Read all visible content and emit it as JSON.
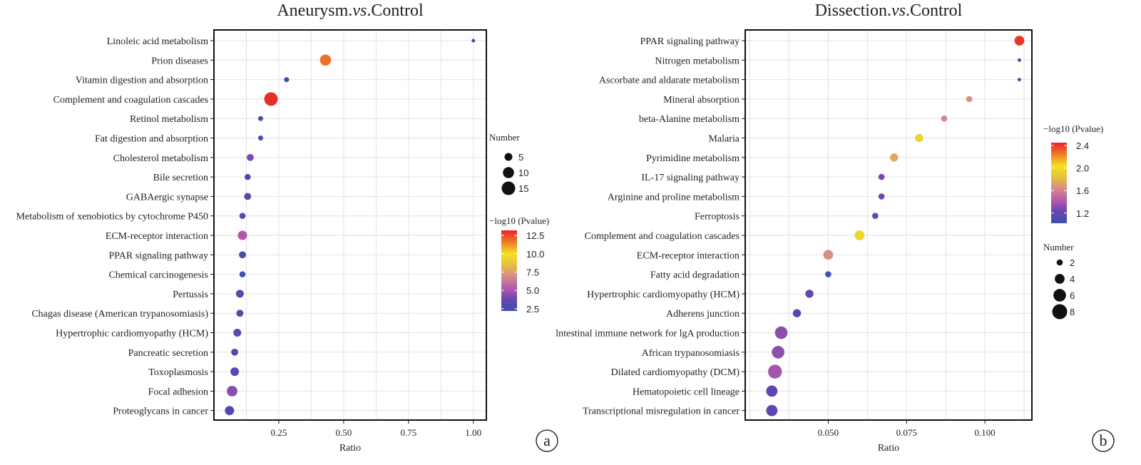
{
  "chart_data": [
    {
      "type": "scatter",
      "title": "Aneurysm.vs.Control",
      "title_parts": {
        "left": "Aneurysm.",
        "italic": "vs",
        "right": ".Control"
      },
      "xlabel": "Ratio",
      "ylabel": "",
      "xlim": [
        0,
        1.05
      ],
      "xticks": [
        0.25,
        0.5,
        0.75,
        1.0
      ],
      "xtick_labels": [
        "0.25",
        "0.50",
        "0.75",
        "1.00"
      ],
      "grid": true,
      "panel_tag": "a",
      "categories": [
        "Linoleic acid metabolism",
        "Prion diseases",
        "Vitamin digestion and absorption",
        "Complement and coagulation cascades",
        "Retinol metabolism",
        "Fat digestion and absorption",
        "Cholesterol metabolism",
        "Bile secretion",
        "GABAergic synapse",
        "Metabolism of xenobiotics by cytochrome P450",
        "ECM-receptor interaction",
        "PPAR signaling pathway",
        "Chemical carcinogenesis",
        "Pertussis",
        "Chagas disease (American trypanosomiasis)",
        "Hypertrophic cardiomyopathy (HCM)",
        "Pancreatic secretion",
        "Toxoplasmosis",
        "Focal adhesion",
        "Proteoglycans in cancer"
      ],
      "ratio": [
        1.0,
        0.43,
        0.28,
        0.22,
        0.18,
        0.18,
        0.14,
        0.13,
        0.13,
        0.11,
        0.11,
        0.11,
        0.11,
        0.1,
        0.1,
        0.09,
        0.08,
        0.08,
        0.07,
        0.06
      ],
      "number": [
        1,
        10,
        2,
        15,
        2,
        2,
        4,
        3,
        4,
        3,
        7,
        4,
        3,
        5,
        4,
        5,
        4,
        6,
        9,
        7
      ],
      "neglog10_p": [
        2.3,
        11.8,
        2.4,
        13.0,
        2.4,
        2.4,
        4.2,
        2.8,
        3.1,
        2.7,
        5.2,
        2.6,
        2.5,
        3.2,
        3.0,
        3.1,
        2.7,
        3.1,
        4.4,
        2.9
      ],
      "size_legend": {
        "title": "Number",
        "values": [
          5,
          10,
          15
        ],
        "labels": [
          "5",
          "10",
          "15"
        ]
      },
      "color_legend": {
        "title": "−log10 (Pvalue)",
        "range": [
          2.2,
          13.2
        ],
        "ticks": [
          2.5,
          5.0,
          7.5,
          10.0,
          12.5
        ],
        "tick_labels": [
          "2.5",
          "5.0",
          "7.5",
          "10.0",
          "12.5"
        ]
      }
    },
    {
      "type": "scatter",
      "title": "Dissection.vs.Control",
      "title_parts": {
        "left": "Dissection.",
        "italic": "vs",
        "right": ".Control"
      },
      "xlabel": "Ratio",
      "ylabel": "",
      "xlim": [
        0.0235,
        0.115
      ],
      "xticks": [
        0.05,
        0.075,
        0.1
      ],
      "xtick_labels": [
        "0.050",
        "0.075",
        "0.100"
      ],
      "grid": true,
      "panel_tag": "b",
      "categories": [
        "PPAR signaling pathway",
        "Nitrogen metabolism",
        "Ascorbate and aldarate metabolism",
        "Mineral absorption",
        "beta-Alanine metabolism",
        "Malaria",
        "Pyrimidine metabolism",
        "IL-17 signaling pathway",
        "Arginine and proline metabolism",
        "Ferroptosis",
        "Complement and coagulation cascades",
        "ECM-receptor interaction",
        "Fatty acid degradation",
        "Hypertrophic cardiomyopathy (HCM)",
        "Adherens junction",
        "lntestinal immune network for lgA production",
        "African trypanosomiasis",
        "Dilated cardiomyopathy (DCM)",
        "Hematopoietic cell lineage",
        "Transcriptional misregulation in cancer"
      ],
      "ratio": [
        0.111,
        0.111,
        0.111,
        0.095,
        0.087,
        0.079,
        0.071,
        0.067,
        0.067,
        0.065,
        0.06,
        0.05,
        0.05,
        0.044,
        0.04,
        0.035,
        0.034,
        0.033,
        0.032,
        0.032
      ],
      "number": [
        4,
        1,
        1,
        2,
        2,
        3,
        3,
        2,
        2,
        2,
        4,
        4,
        2,
        3,
        3,
        6,
        6,
        7,
        5,
        5
      ],
      "neglog10_p": [
        2.4,
        1.1,
        1.1,
        1.65,
        1.62,
        1.95,
        1.75,
        1.25,
        1.25,
        1.2,
        1.98,
        1.65,
        1.08,
        1.2,
        1.12,
        1.32,
        1.32,
        1.38,
        1.18,
        1.18
      ],
      "size_legend": {
        "title": "Number",
        "values": [
          2,
          4,
          6,
          8
        ],
        "labels": [
          "2",
          "4",
          "6",
          "8"
        ]
      },
      "color_legend": {
        "title": "−log10 (Pvalue)",
        "range": [
          1.02,
          2.45
        ],
        "ticks": [
          1.2,
          1.6,
          2.0,
          2.4
        ],
        "tick_labels": [
          "1.2",
          "1.6",
          "2.0",
          "2.4"
        ]
      }
    }
  ],
  "colors": {
    "scale": [
      "#3b4fb0",
      "#6a44b0",
      "#b65aaa",
      "#d68a8a",
      "#e6c040",
      "#f2e020",
      "#f07828",
      "#e8222c"
    ],
    "grid": "#e2e2e2",
    "frame": "#111111",
    "background": "#ffffff"
  }
}
